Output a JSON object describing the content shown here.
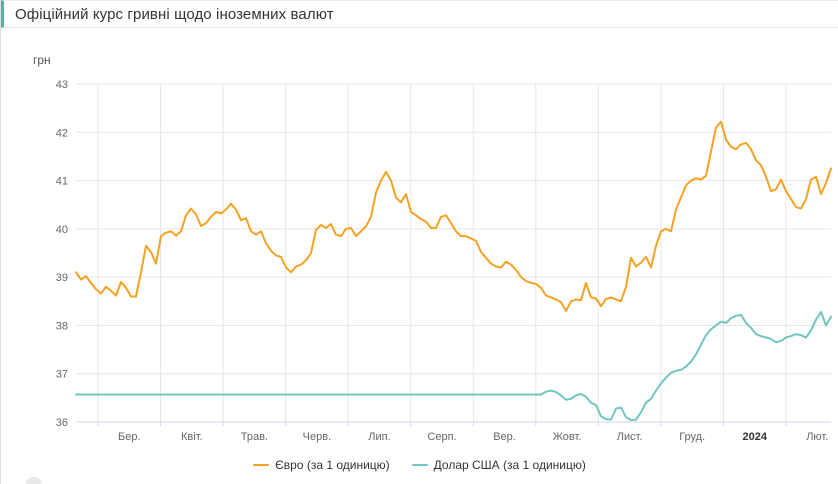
{
  "header": {
    "title": "Офіційний курс гривні щодо іноземних валют",
    "accent_color": "#5dae9c"
  },
  "chart_data": {
    "type": "line",
    "title": "Офіційний курс гривні щодо іноземних валют",
    "y_axis": {
      "unit_label": "грн",
      "min": 36,
      "max": 43,
      "ticks": [
        36,
        37,
        38,
        39,
        40,
        41,
        42,
        43
      ]
    },
    "x_axis": {
      "period_start": "2023-02",
      "period_end": "2024-02",
      "labels": [
        {
          "label": "Бер.",
          "bold": false
        },
        {
          "label": "Квіт.",
          "bold": false
        },
        {
          "label": "Трав.",
          "bold": false
        },
        {
          "label": "Черв.",
          "bold": false
        },
        {
          "label": "Лип.",
          "bold": false
        },
        {
          "label": "Серп.",
          "bold": false
        },
        {
          "label": "Вер.",
          "bold": false
        },
        {
          "label": "Жовт.",
          "bold": false
        },
        {
          "label": "Лист.",
          "bold": false
        },
        {
          "label": "Груд.",
          "bold": false
        },
        {
          "label": "2024",
          "bold": true
        },
        {
          "label": "Лют.",
          "bold": false
        }
      ]
    },
    "sampling_note": "values sampled uniformly ~every 2.4 days from mid-Feb 2023 to mid/late-Feb 2024",
    "series": [
      {
        "name": "Євро (за 1 одиницю)",
        "color": "#f4a224",
        "values": [
          39.1,
          38.95,
          39.02,
          38.88,
          38.75,
          38.66,
          38.8,
          38.72,
          38.62,
          38.9,
          38.78,
          38.6,
          38.6,
          39.1,
          39.65,
          39.52,
          39.28,
          39.85,
          39.92,
          39.95,
          39.86,
          39.95,
          40.28,
          40.42,
          40.3,
          40.06,
          40.12,
          40.25,
          40.35,
          40.32,
          40.4,
          40.52,
          40.4,
          40.18,
          40.22,
          39.95,
          39.88,
          39.95,
          39.7,
          39.55,
          39.45,
          39.42,
          39.2,
          39.1,
          39.22,
          39.26,
          39.35,
          39.5,
          39.98,
          40.08,
          40.02,
          40.1,
          39.88,
          39.85,
          40.0,
          40.02,
          39.85,
          39.95,
          40.05,
          40.25,
          40.75,
          41.0,
          41.18,
          41.0,
          40.65,
          40.55,
          40.72,
          40.35,
          40.28,
          40.2,
          40.15,
          40.02,
          40.02,
          40.25,
          40.28,
          40.12,
          39.95,
          39.85,
          39.85,
          39.8,
          39.75,
          39.52,
          39.4,
          39.28,
          39.22,
          39.2,
          39.32,
          39.26,
          39.15,
          39.0,
          38.92,
          38.88,
          38.86,
          38.78,
          38.62,
          38.58,
          38.54,
          38.48,
          38.3,
          38.5,
          38.54,
          38.52,
          38.88,
          38.58,
          38.56,
          38.4,
          38.55,
          38.58,
          38.54,
          38.5,
          38.8,
          39.4,
          39.22,
          39.3,
          39.42,
          39.2,
          39.65,
          39.95,
          40.0,
          39.95,
          40.4,
          40.65,
          40.9,
          41.0,
          41.05,
          41.02,
          41.1,
          41.6,
          42.1,
          42.22,
          41.85,
          41.7,
          41.65,
          41.75,
          41.78,
          41.65,
          41.42,
          41.32,
          41.08,
          40.78,
          40.82,
          41.02,
          40.78,
          40.62,
          40.45,
          40.42,
          40.62,
          41.02,
          41.08,
          40.72,
          40.95,
          41.25
        ]
      },
      {
        "name": "Долар США (за 1 одиницю)",
        "color": "#72c6c2",
        "values": [
          36.57,
          36.57,
          36.57,
          36.57,
          36.57,
          36.57,
          36.57,
          36.57,
          36.57,
          36.57,
          36.57,
          36.57,
          36.57,
          36.57,
          36.57,
          36.57,
          36.57,
          36.57,
          36.57,
          36.57,
          36.57,
          36.57,
          36.57,
          36.57,
          36.57,
          36.57,
          36.57,
          36.57,
          36.57,
          36.57,
          36.57,
          36.57,
          36.57,
          36.57,
          36.57,
          36.57,
          36.57,
          36.57,
          36.57,
          36.57,
          36.57,
          36.57,
          36.57,
          36.57,
          36.57,
          36.57,
          36.57,
          36.57,
          36.57,
          36.57,
          36.57,
          36.57,
          36.57,
          36.57,
          36.57,
          36.57,
          36.57,
          36.57,
          36.57,
          36.57,
          36.57,
          36.57,
          36.57,
          36.57,
          36.57,
          36.57,
          36.57,
          36.57,
          36.57,
          36.57,
          36.57,
          36.57,
          36.57,
          36.57,
          36.57,
          36.57,
          36.57,
          36.57,
          36.57,
          36.57,
          36.57,
          36.57,
          36.57,
          36.57,
          36.57,
          36.57,
          36.57,
          36.57,
          36.57,
          36.57,
          36.57,
          36.57,
          36.57,
          36.57,
          36.63,
          36.65,
          36.62,
          36.55,
          36.46,
          36.48,
          36.55,
          36.58,
          36.52,
          36.4,
          36.35,
          36.12,
          36.06,
          36.05,
          36.28,
          36.3,
          36.1,
          36.04,
          36.05,
          36.2,
          36.4,
          36.48,
          36.65,
          36.8,
          36.92,
          37.02,
          37.06,
          37.08,
          37.15,
          37.25,
          37.4,
          37.6,
          37.8,
          37.92,
          38.0,
          38.08,
          38.05,
          38.15,
          38.2,
          38.22,
          38.05,
          37.95,
          37.82,
          37.78,
          37.75,
          37.72,
          37.65,
          37.68,
          37.75,
          37.78,
          37.82,
          37.8,
          37.75,
          37.9,
          38.12,
          38.28,
          38.0,
          38.18
        ]
      }
    ],
    "style": {
      "grid_color": "#e6e6e6",
      "axis_line_color": "#ccd6eb",
      "label_color": "#666666",
      "bold_label_color": "#333333"
    },
    "layout": {
      "grid": true,
      "legend_position": "bottom-center"
    }
  }
}
